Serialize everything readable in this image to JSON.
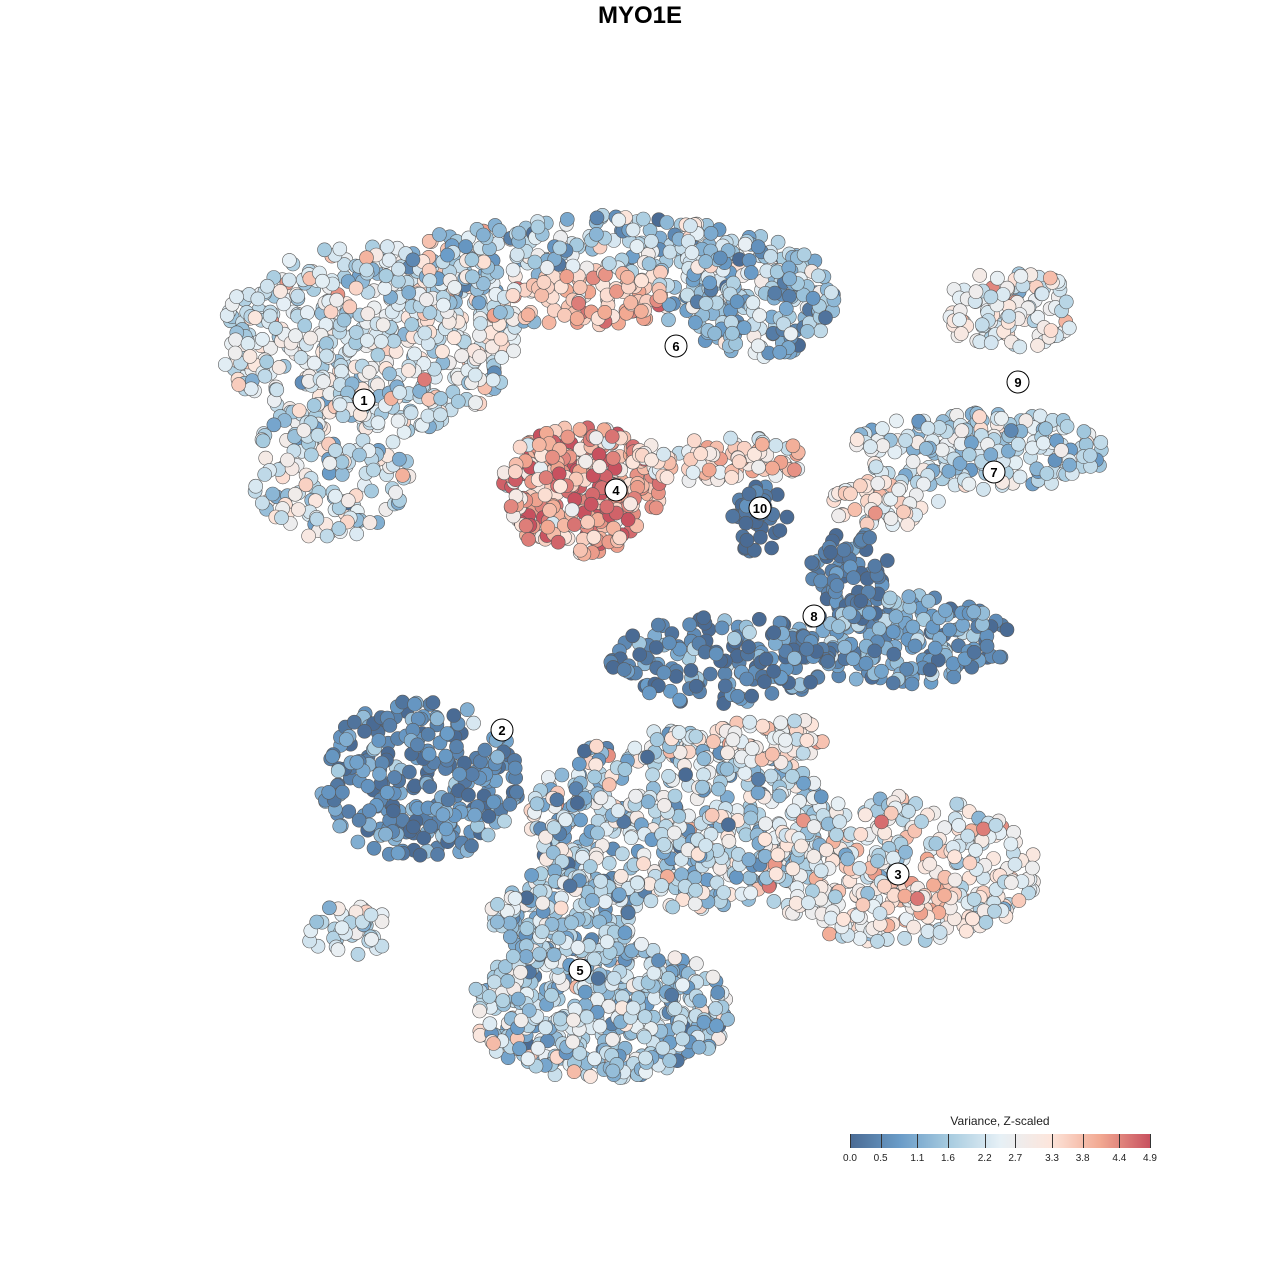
{
  "chart_data": {
    "type": "scatter",
    "title": "MYO1E",
    "colorbar": {
      "title": "Variance, Z-scaled",
      "range": [
        0.0,
        4.9
      ],
      "ticks": [
        "0.0",
        "0.5",
        "1.1",
        "1.6",
        "2.2",
        "2.7",
        "3.3",
        "3.8",
        "4.4",
        "4.9"
      ],
      "colors": [
        "#4a6b94",
        "#6a9cc8",
        "#a8cce0",
        "#e6f0f6",
        "#fde6dc",
        "#f2a992",
        "#c8515f"
      ]
    },
    "grid": false,
    "axes_visible": false,
    "clusters": [
      {
        "label": "1",
        "x": -4.6,
        "y": 4.0,
        "mean_variance": 2.3
      },
      {
        "label": "2",
        "x": -2.3,
        "y": -1.5,
        "mean_variance": 1.0
      },
      {
        "label": "3",
        "x": 4.3,
        "y": -3.9,
        "mean_variance": 2.8
      },
      {
        "label": "4",
        "x": -0.4,
        "y": 2.5,
        "mean_variance": 4.2
      },
      {
        "label": "5",
        "x": -1.0,
        "y": -5.5,
        "mean_variance": 1.9
      },
      {
        "label": "6",
        "x": 0.6,
        "y": 4.9,
        "mean_variance": 1.8
      },
      {
        "label": "7",
        "x": 5.9,
        "y": 2.8,
        "mean_variance": 1.7
      },
      {
        "label": "8",
        "x": 2.9,
        "y": 0.4,
        "mean_variance": 0.7
      },
      {
        "label": "9",
        "x": 6.3,
        "y": 4.3,
        "mean_variance": 2.4
      },
      {
        "label": "10",
        "x": 2.0,
        "y": 2.2,
        "mean_variance": 0.3
      }
    ]
  }
}
